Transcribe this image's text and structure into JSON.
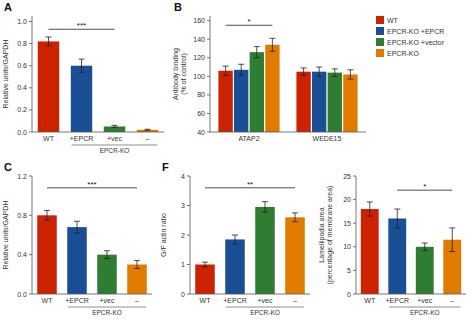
{
  "chart_data": [
    {
      "type": "bar",
      "title": "A",
      "categories": [
        "WT",
        "+EPCR",
        "+vec",
        "–"
      ],
      "values": [
        0.82,
        0.6,
        0.05,
        0.02
      ],
      "errors": [
        0.04,
        0.06,
        0.01,
        0.005
      ],
      "colors": [
        "#cc2200",
        "#1a4f96",
        "#2e7d32",
        "#e07b00"
      ],
      "y_label": "Relative units/GAPDH",
      "ylim": [
        0,
        1.05
      ],
      "yticks": [
        {
          "value": 0,
          "label": "0.0"
        },
        0.2,
        0.4,
        0.6,
        0.8,
        {
          "value": 1,
          "label": "1.0"
        }
      ],
      "annotations": [
        {
          "text": "***",
          "from": "WT",
          "to": "+vec",
          "y": 0.93
        },
        {
          "text": "EPCR-KO",
          "from": "+EPCR",
          "to": "–"
        }
      ]
    },
    {
      "type": "bar",
      "title": "B",
      "categories": [
        "ATAP2",
        "WEDE15"
      ],
      "series": [
        {
          "name": "WT",
          "color": "#cc2200",
          "values": [
            106,
            105
          ],
          "errors": [
            5,
            4
          ]
        },
        {
          "name": "EPCR-KO +EPCR",
          "color": "#1a4f96",
          "values": [
            107,
            105
          ],
          "errors": [
            6,
            5
          ]
        },
        {
          "name": "EPCR-KO +vector",
          "color": "#2e7d32",
          "values": [
            126,
            104
          ],
          "errors": [
            6,
            4
          ]
        },
        {
          "name": "EPCR-KO",
          "color": "#e07b00",
          "values": [
            134,
            102
          ],
          "errors": [
            7,
            5
          ]
        }
      ],
      "y_label": "Antibody binding\n(% of control)",
      "ylim": [
        40,
        165
      ],
      "yticks": [
        40,
        60,
        80,
        100,
        120,
        140,
        160
      ],
      "legend": "upper right",
      "annotations": [
        {
          "text": "*",
          "group": "ATAP2",
          "from": "WT",
          "to": "EPCR-KO",
          "y": 155
        }
      ]
    },
    {
      "type": "bar",
      "title": "C",
      "categories": [
        "WT",
        "+EPCR",
        "+vec",
        "–"
      ],
      "values": [
        0.8,
        0.68,
        0.4,
        0.3
      ],
      "errors": [
        0.05,
        0.06,
        0.04,
        0.04
      ],
      "colors": [
        "#cc2200",
        "#1a4f96",
        "#2e7d32",
        "#e07b00"
      ],
      "y_label": "Relative units/GAPDH",
      "ylim": [
        0,
        1.2
      ],
      "yticks": [
        {
          "value": 0,
          "label": "0.0"
        },
        0.4,
        0.8,
        1.2
      ],
      "annotations": [
        {
          "text": "***",
          "from": "WT",
          "to": "–",
          "y": 1.08
        },
        {
          "text": "EPCR-KO",
          "from": "+EPCR",
          "to": "–"
        }
      ]
    },
    {
      "type": "bar",
      "title": "F",
      "categories": [
        "WT",
        "+EPCR",
        "+vec",
        "–"
      ],
      "values": [
        1.0,
        1.85,
        2.95,
        2.6
      ],
      "errors": [
        0.08,
        0.15,
        0.18,
        0.15
      ],
      "colors": [
        "#cc2200",
        "#1a4f96",
        "#2e7d32",
        "#e07b00"
      ],
      "y_label": "G/F actin ratio",
      "ylim": [
        0,
        4.0
      ],
      "yticks": [
        0,
        1,
        2,
        3,
        4
      ],
      "annotations": [
        {
          "text": "**",
          "from": "WT",
          "to": "–",
          "y": 3.6
        },
        {
          "text": "EPCR-KO",
          "from": "+EPCR",
          "to": "–"
        }
      ]
    },
    {
      "type": "bar",
      "categories": [
        "WT",
        "+EPCR",
        "+vec",
        "–"
      ],
      "values": [
        18.0,
        16.0,
        10.0,
        11.5
      ],
      "errors": [
        1.5,
        2.0,
        0.8,
        2.5
      ],
      "colors": [
        "#cc2200",
        "#1a4f96",
        "#2e7d32",
        "#e07b00"
      ],
      "y_label": "Lamellipodia area\n(percentage of membrane area)",
      "ylim": [
        0,
        25
      ],
      "yticks": [
        0,
        5,
        10,
        15,
        20,
        25
      ],
      "annotations": [
        {
          "text": "*",
          "from": "+EPCR",
          "to": "–",
          "y": 22
        },
        {
          "text": "EPCR-KO",
          "from": "+EPCR",
          "to": "–"
        }
      ]
    }
  ]
}
